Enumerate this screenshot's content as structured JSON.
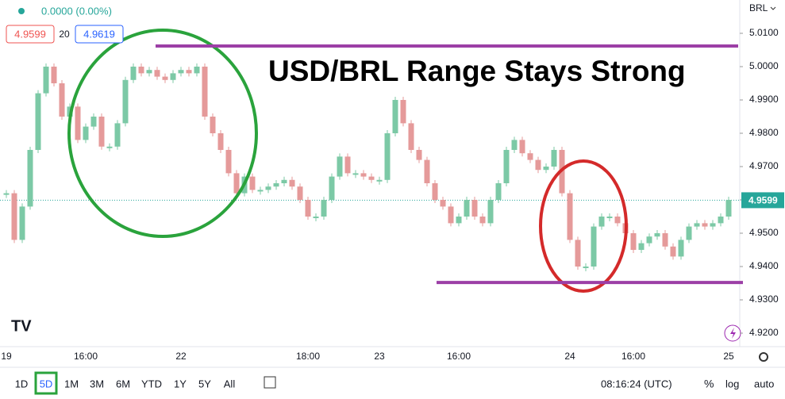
{
  "chart_data": {
    "type": "candlestick",
    "title": "USD/BRL Range Stays Strong",
    "currency": "BRL",
    "change": "0.0000 (0.00%)",
    "bid": 4.9599,
    "spread": 20,
    "ask": 4.9619,
    "last_price": 4.9599,
    "categories": [
      "19",
      null,
      null,
      null,
      null,
      null,
      null,
      null,
      null,
      null,
      "16:00",
      null,
      null,
      null,
      null,
      null,
      null,
      null,
      null,
      null,
      null,
      null,
      "22",
      null,
      null,
      null,
      null,
      null,
      null,
      null,
      null,
      null,
      null,
      null,
      null,
      null,
      null,
      null,
      "18:00",
      null,
      null,
      null,
      null,
      null,
      null,
      null,
      null,
      "23",
      null,
      null,
      null,
      null,
      null,
      null,
      null,
      null,
      null,
      "16:00",
      null,
      null,
      null,
      null,
      null,
      null,
      null,
      null,
      null,
      null,
      null,
      null,
      null,
      "24",
      null,
      null,
      null,
      null,
      null,
      null,
      null,
      "16:00",
      null,
      null,
      null,
      null,
      null,
      null,
      null,
      null,
      null,
      null,
      null,
      "25"
    ],
    "series": [
      {
        "up_color": "#7cc9a6",
        "down_color": "#e59a9a",
        "values": [
          4.962,
          4.948,
          4.958,
          4.975,
          4.992,
          5.0,
          4.995,
          4.985,
          4.988,
          4.978,
          4.982,
          4.985,
          4.976,
          4.976,
          4.983,
          4.996,
          5.0,
          4.998,
          4.999,
          4.997,
          4.996,
          4.998,
          4.999,
          4.998,
          5.0,
          4.985,
          4.98,
          4.975,
          4.968,
          4.962,
          4.967,
          4.963,
          4.963,
          4.964,
          4.965,
          4.966,
          4.964,
          4.96,
          4.955,
          4.955,
          4.96,
          4.967,
          4.973,
          4.968,
          4.968,
          4.967,
          4.966,
          4.966,
          4.98,
          4.99,
          4.983,
          4.975,
          4.972,
          4.965,
          4.96,
          4.958,
          4.953,
          4.955,
          4.96,
          4.955,
          4.953,
          4.96,
          4.965,
          4.975,
          4.978,
          4.974,
          4.972,
          4.969,
          4.97,
          4.975,
          4.962,
          4.948,
          4.94,
          4.94,
          4.952,
          4.955,
          4.955,
          4.953,
          4.95,
          4.945,
          4.947,
          4.949,
          4.95,
          4.946,
          4.943,
          4.948,
          4.952,
          4.953,
          4.952,
          4.953,
          4.955,
          4.96
        ]
      }
    ],
    "levels": [
      5.0062,
      4.9352
    ],
    "level_color": "#9c3fa6",
    "ylim": [
      4.91595,
      5.02
    ],
    "yticks": [
      {
        "value": 5.01,
        "label": "5.0100"
      },
      {
        "value": 5.0,
        "label": "5.0000"
      },
      {
        "value": 4.99,
        "label": "4.9900"
      },
      {
        "value": 4.98,
        "label": "4.9800"
      },
      {
        "value": 4.97,
        "label": "4.9700"
      },
      {
        "value": 4.96,
        "label": "4.9600"
      },
      {
        "value": 4.95,
        "label": "4.9500"
      },
      {
        "value": 4.94,
        "label": "4.9400"
      },
      {
        "value": 4.93,
        "label": "4.9300"
      },
      {
        "value": 4.92,
        "label": "4.9200"
      }
    ],
    "grid": false
  },
  "toolbar": {
    "ranges": [
      "1D",
      "5D",
      "1M",
      "3M",
      "6M",
      "YTD",
      "1Y",
      "5Y",
      "All"
    ],
    "selected": "5D",
    "clock": "08:16:24 (UTC)",
    "percent": "%",
    "log": "log",
    "auto": "auto"
  }
}
